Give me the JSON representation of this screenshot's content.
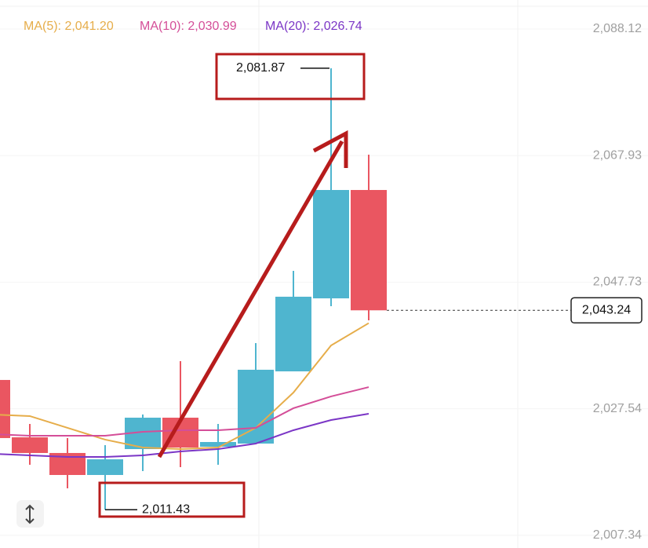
{
  "chart_data": {
    "type": "candlestick",
    "x": [
      null,
      null,
      null,
      null,
      null,
      null,
      null,
      null,
      null,
      null,
      null
    ],
    "open": [
      2032.13,
      2022.98,
      2020.48,
      2016.97,
      2021.1,
      2026.11,
      2021.48,
      2021.98,
      2033.5,
      2045.15,
      2062.44
    ],
    "high": [
      2032.13,
      2025.11,
      2022.86,
      2021.73,
      2026.62,
      2035.13,
      2025.11,
      2038.01,
      2049.54,
      2081.87,
      2068.08
    ],
    "low": [
      2022.86,
      2018.6,
      2014.84,
      2011.43,
      2017.59,
      2018.22,
      2018.6,
      2021.98,
      2033.5,
      2043.9,
      2041.65
    ],
    "close": [
      2022.86,
      2020.48,
      2016.97,
      2019.47,
      2026.11,
      2021.35,
      2022.23,
      2033.76,
      2045.41,
      2062.44,
      2043.24
    ],
    "up_color": "#4fb5cf",
    "down_color": "#ea5661",
    "series": [
      {
        "name": "MA(5): 2,041.20",
        "color": "#e6ad4a",
        "values": [
          2026.62,
          2026.37,
          2024.49,
          2022.61,
          2021.35,
          2021.1,
          2021.35,
          2024.49,
          2030.12,
          2037.64,
          2041.2
        ]
      },
      {
        "name": "MA(10): 2,030.99",
        "color": "#d44e98",
        "values": [
          2023.48,
          2023.23,
          2023.23,
          2023.23,
          2023.86,
          2024.11,
          2024.11,
          2024.49,
          2027.62,
          2029.5,
          2030.99
        ]
      },
      {
        "name": "MA(20): 2,026.74",
        "color": "#7b36c6",
        "values": [
          2020.35,
          2020.1,
          2019.85,
          2019.85,
          2020.1,
          2020.73,
          2021.1,
          2021.98,
          2024.11,
          2025.74,
          2026.74
        ]
      }
    ],
    "ylim": [
      2005.32,
      2092.75
    ],
    "yticks": [
      {
        "value": 2088.12,
        "label": "2,088.12"
      },
      {
        "value": 2067.93,
        "label": "2,067.93"
      },
      {
        "value": 2047.73,
        "label": "2,047.73"
      },
      {
        "value": 2027.54,
        "label": "2,027.54"
      },
      {
        "value": 2007.34,
        "label": "2,007.34"
      }
    ],
    "grid": true,
    "annotations": [
      {
        "value": 2081.87,
        "label": "2,081.87"
      },
      {
        "value": 2011.43,
        "label": "2,011.43"
      }
    ],
    "current_price": {
      "value": 2043.24,
      "label": "2,043.24"
    }
  }
}
